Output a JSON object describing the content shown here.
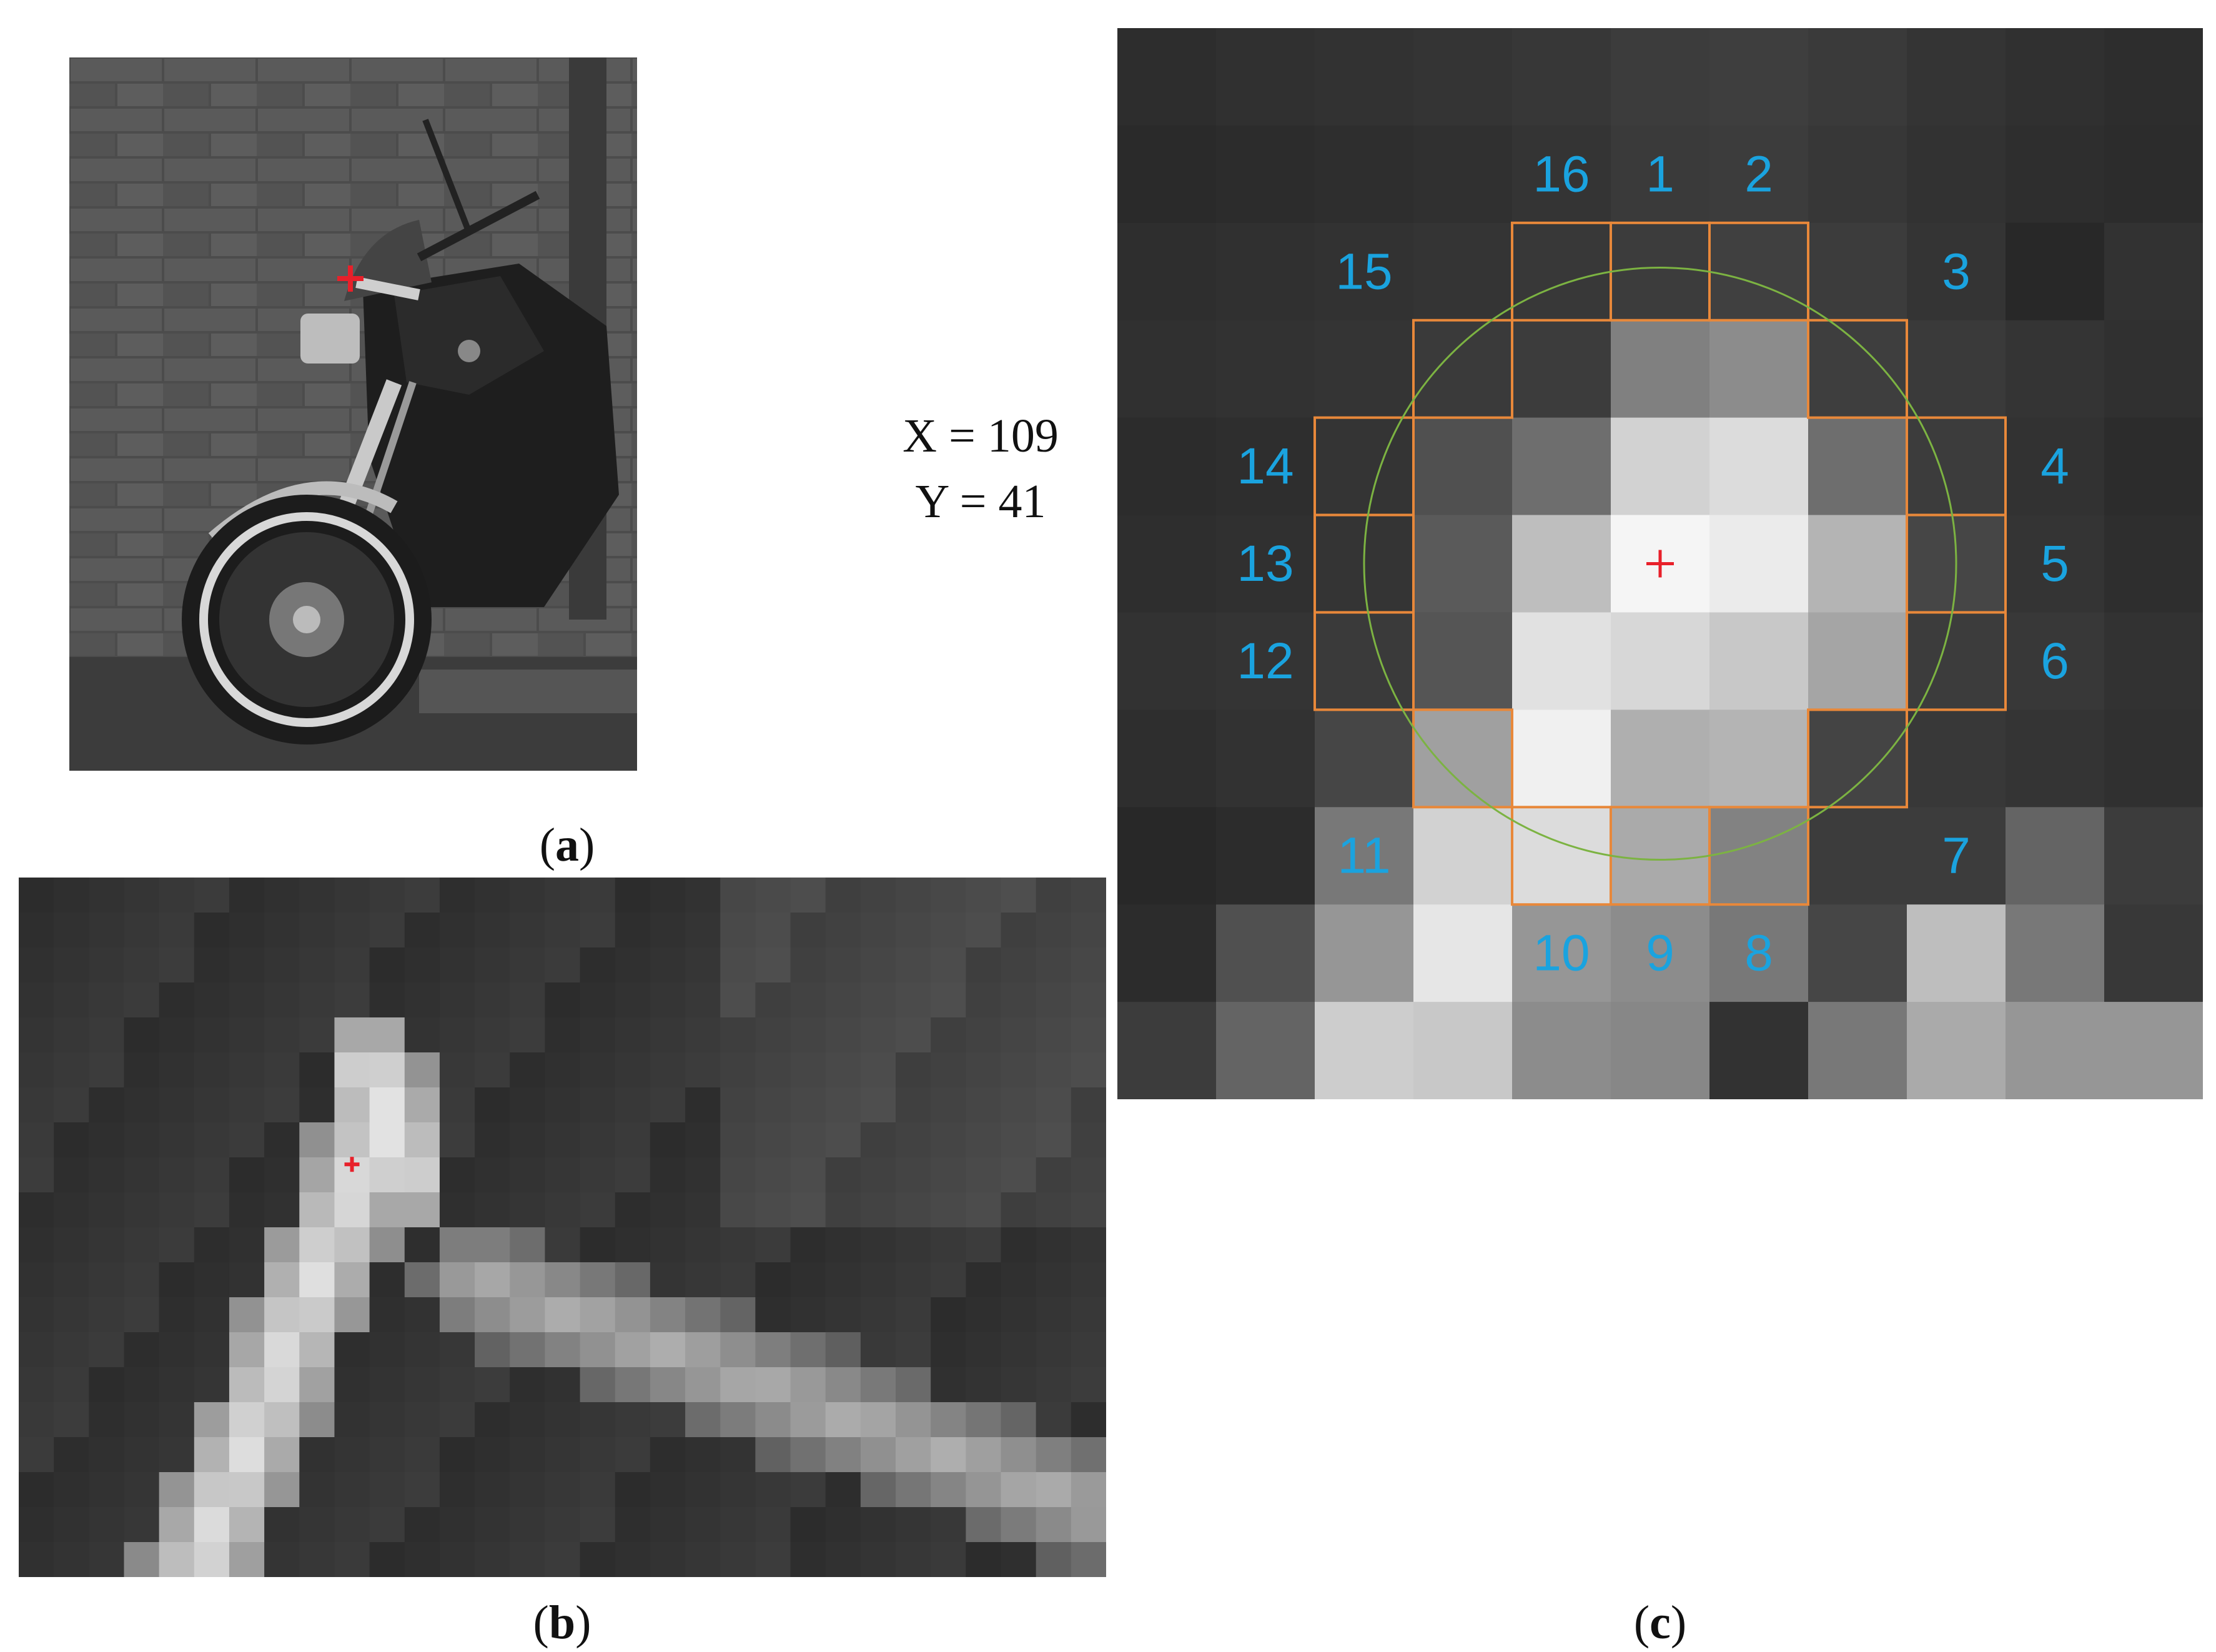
{
  "panels": [
    {
      "id": "a",
      "caption_open": "(",
      "caption_letter": "a",
      "caption_close": ")"
    },
    {
      "id": "b",
      "caption_open": "(",
      "caption_letter": "b",
      "caption_close": ")"
    },
    {
      "id": "c",
      "caption_open": "(",
      "caption_letter": "c",
      "caption_close": ")"
    }
  ],
  "coordinates": {
    "x_text": "X = 109",
    "y_text": "Y = 41"
  },
  "neighborhood": {
    "point_labels": [
      "1",
      "2",
      "3",
      "4",
      "5",
      "6",
      "7",
      "8",
      "9",
      "10",
      "11",
      "12",
      "13",
      "14",
      "15",
      "16"
    ]
  },
  "colors": {
    "marker": "#e8202a",
    "label_blue": "#1aa3df",
    "box_orange": "#e8883a",
    "circle_green": "#7cb342"
  }
}
